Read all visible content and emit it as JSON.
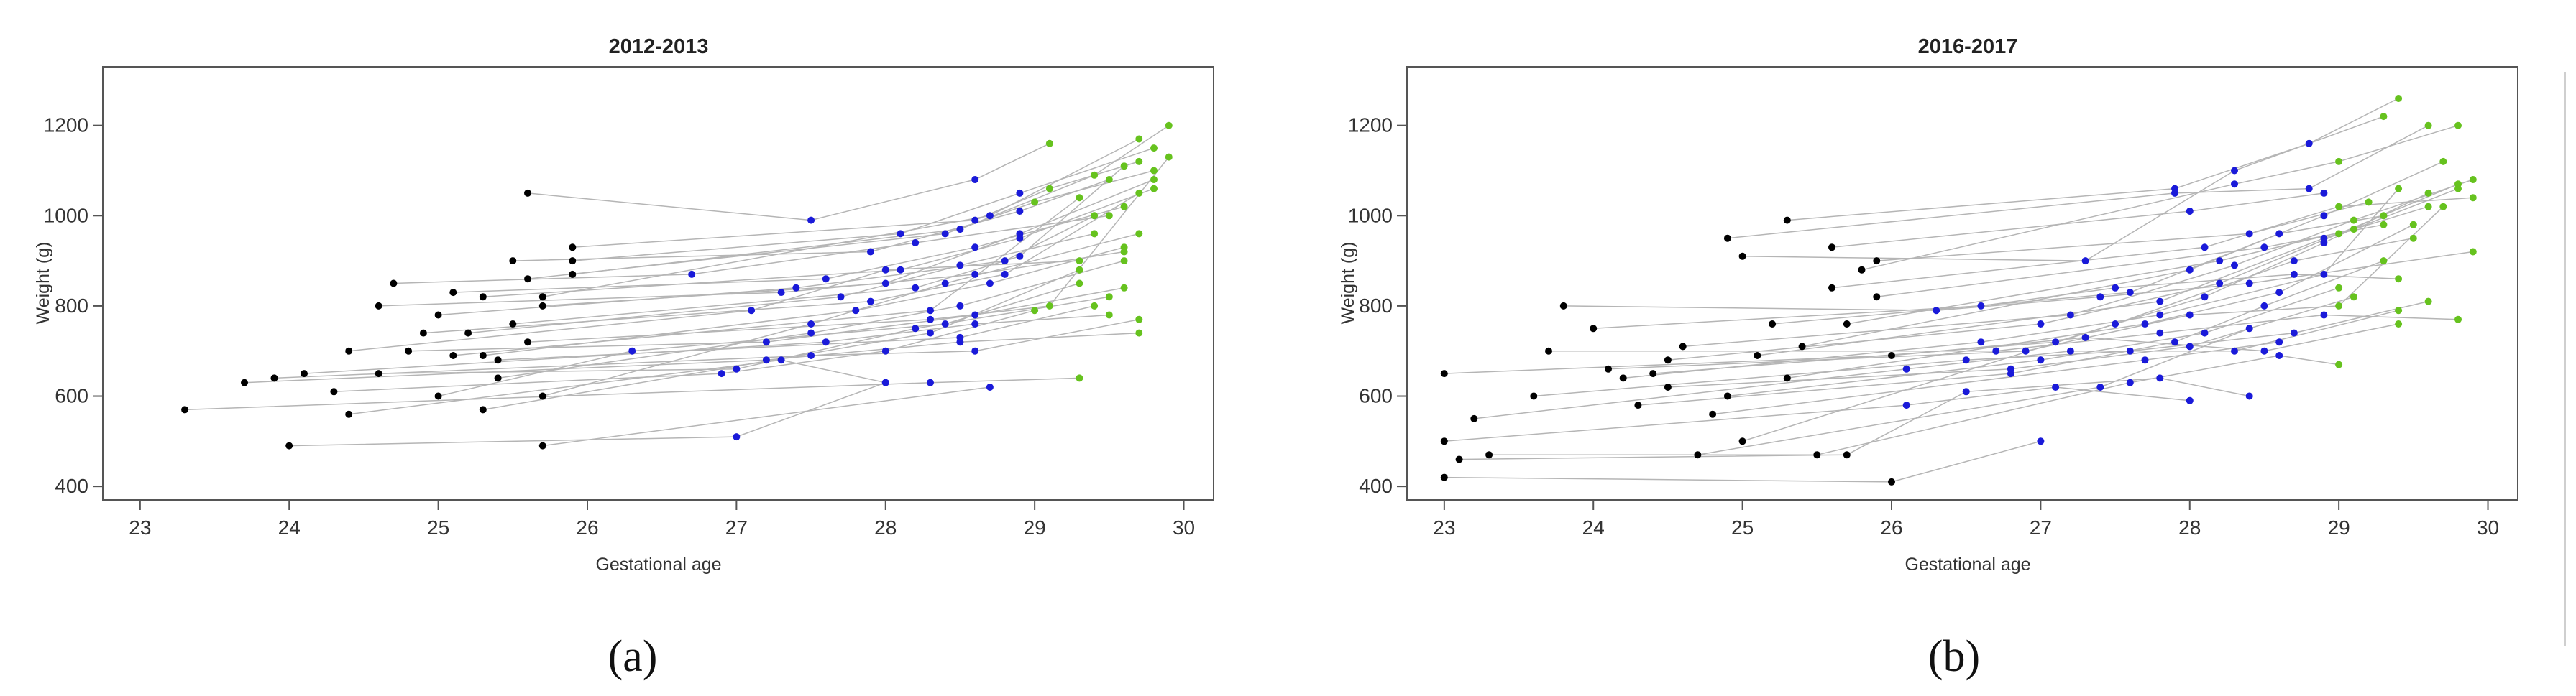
{
  "chart_data": [
    {
      "type": "scatter",
      "panel_label": "(a)",
      "title": "2012-2013",
      "xlabel": "Gestational age",
      "ylabel": "Weight (g)",
      "xlim": [
        22.75,
        30.2
      ],
      "ylim": [
        370,
        1330
      ],
      "xticks": [
        23,
        24,
        25,
        26,
        27,
        28,
        29,
        30
      ],
      "yticks": [
        400,
        600,
        800,
        1000,
        1200
      ],
      "grid": false,
      "legend": "none",
      "colors": {
        "points_early": "#000000",
        "points_mid": "#1a1ad9",
        "points_late": "#66c21e",
        "lines": "#b5b5b5"
      },
      "trajectories": [
        [
          [
            23.3,
            570
          ],
          [
            28.3,
            630
          ],
          [
            29.3,
            640
          ]
        ],
        [
          [
            24.0,
            490
          ],
          [
            27.0,
            510
          ],
          [
            28.0,
            630
          ]
        ],
        [
          [
            25.7,
            490
          ],
          [
            28.7,
            620
          ]
        ],
        [
          [
            24.4,
            560
          ],
          [
            27.3,
            680
          ],
          [
            28.0,
            630
          ]
        ],
        [
          [
            23.7,
            630
          ],
          [
            27.2,
            680
          ],
          [
            28.5,
            720
          ],
          [
            29.7,
            740
          ]
        ],
        [
          [
            23.9,
            640
          ],
          [
            27.5,
            690
          ],
          [
            28.6,
            700
          ],
          [
            29.7,
            770
          ]
        ],
        [
          [
            24.1,
            650
          ],
          [
            27.6,
            720
          ],
          [
            28.6,
            760
          ],
          [
            29.5,
            780
          ]
        ],
        [
          [
            24.3,
            610
          ],
          [
            26.9,
            650
          ],
          [
            28.0,
            700
          ],
          [
            29.0,
            790
          ]
        ],
        [
          [
            24.6,
            650
          ],
          [
            27.0,
            660
          ],
          [
            28.2,
            750
          ],
          [
            29.5,
            820
          ]
        ],
        [
          [
            24.8,
            700
          ],
          [
            27.2,
            720
          ],
          [
            28.6,
            780
          ],
          [
            29.6,
            840
          ]
        ],
        [
          [
            25.0,
            600
          ],
          [
            26.3,
            700
          ],
          [
            28.4,
            760
          ],
          [
            29.3,
            850
          ]
        ],
        [
          [
            25.3,
            570
          ],
          [
            28.3,
            740
          ],
          [
            29.3,
            880
          ]
        ],
        [
          [
            25.4,
            640
          ],
          [
            27.5,
            740
          ],
          [
            28.5,
            800
          ],
          [
            29.6,
            900
          ]
        ],
        [
          [
            25.7,
            600
          ],
          [
            27.5,
            760
          ],
          [
            28.4,
            850
          ],
          [
            29.7,
            960
          ]
        ],
        [
          [
            24.4,
            700
          ],
          [
            27.1,
            790
          ],
          [
            28.0,
            880
          ],
          [
            29.3,
            900
          ]
        ],
        [
          [
            24.6,
            800
          ],
          [
            27.3,
            830
          ],
          [
            28.6,
            870
          ],
          [
            29.6,
            920
          ]
        ],
        [
          [
            24.7,
            850
          ],
          [
            26.7,
            870
          ],
          [
            28.2,
            940
          ],
          [
            29.5,
            1000
          ]
        ],
        [
          [
            25.1,
            830
          ],
          [
            27.6,
            860
          ],
          [
            28.6,
            930
          ],
          [
            29.6,
            1020
          ]
        ],
        [
          [
            25.3,
            820
          ],
          [
            28.1,
            880
          ],
          [
            28.9,
            950
          ],
          [
            29.8,
            1060
          ]
        ],
        [
          [
            25.5,
            900
          ],
          [
            27.9,
            920
          ],
          [
            28.9,
            1010
          ],
          [
            29.5,
            1080
          ]
        ],
        [
          [
            25.6,
            860
          ],
          [
            28.4,
            960
          ],
          [
            29.0,
            1030
          ],
          [
            29.8,
            1100
          ]
        ],
        [
          [
            25.9,
            930
          ],
          [
            28.6,
            990
          ],
          [
            29.1,
            1060
          ],
          [
            29.7,
            1120
          ]
        ],
        [
          [
            25.9,
            900
          ],
          [
            28.1,
            960
          ],
          [
            28.9,
            1050
          ],
          [
            29.8,
            1150
          ]
        ],
        [
          [
            25.6,
            1050
          ],
          [
            27.5,
            990
          ],
          [
            28.6,
            1080
          ],
          [
            29.1,
            1160
          ]
        ],
        [
          [
            25.7,
            820
          ],
          [
            28.7,
            1000
          ],
          [
            29.7,
            1170
          ]
        ],
        [
          [
            25.9,
            870
          ],
          [
            28.5,
            970
          ],
          [
            29.4,
            1090
          ],
          [
            29.9,
            1200
          ]
        ],
        [
          [
            25.2,
            740
          ],
          [
            27.7,
            820
          ],
          [
            28.5,
            890
          ],
          [
            29.4,
            960
          ]
        ],
        [
          [
            25.3,
            690
          ],
          [
            27.8,
            790
          ],
          [
            28.7,
            850
          ],
          [
            29.6,
            930
          ]
        ],
        [
          [
            25.0,
            780
          ],
          [
            27.4,
            840
          ],
          [
            28.8,
            900
          ],
          [
            29.4,
            1000
          ]
        ],
        [
          [
            24.9,
            740
          ],
          [
            27.9,
            810
          ],
          [
            28.8,
            870
          ],
          [
            29.7,
            1050
          ]
        ],
        [
          [
            25.5,
            760
          ],
          [
            28.2,
            840
          ],
          [
            28.9,
            910
          ],
          [
            29.6,
            1110
          ]
        ],
        [
          [
            25.7,
            800
          ],
          [
            28.0,
            850
          ],
          [
            28.9,
            960
          ],
          [
            29.8,
            1080
          ]
        ],
        [
          [
            25.6,
            720
          ],
          [
            28.3,
            770
          ],
          [
            29.1,
            800
          ],
          [
            29.9,
            1130
          ]
        ],
        [
          [
            25.4,
            680
          ],
          [
            28.5,
            730
          ],
          [
            29.4,
            800
          ]
        ],
        [
          [
            25.1,
            690
          ],
          [
            28.3,
            790
          ],
          [
            29.3,
            1040
          ]
        ]
      ]
    },
    {
      "type": "scatter",
      "panel_label": "(b)",
      "title": "2016-2017",
      "xlabel": "Gestational age",
      "ylabel": "Weight (g)",
      "xlim": [
        22.75,
        30.2
      ],
      "ylim": [
        370,
        1330
      ],
      "xticks": [
        23,
        24,
        25,
        26,
        27,
        28,
        29,
        30
      ],
      "yticks": [
        400,
        600,
        800,
        1000,
        1200
      ],
      "grid": false,
      "legend": "none",
      "colors": {
        "points_early": "#000000",
        "points_mid": "#1a1ad9",
        "points_late": "#66c21e",
        "lines": "#b5b5b5"
      },
      "trajectories": [
        [
          [
            23.0,
            420
          ],
          [
            26.0,
            410
          ],
          [
            27.0,
            500
          ]
        ],
        [
          [
            23.0,
            500
          ],
          [
            26.1,
            580
          ],
          [
            27.1,
            620
          ],
          [
            28.0,
            590
          ]
        ],
        [
          [
            23.1,
            460
          ],
          [
            25.7,
            470
          ],
          [
            26.5,
            610
          ],
          [
            27.8,
            640
          ],
          [
            28.4,
            600
          ]
        ],
        [
          [
            23.0,
            650
          ],
          [
            26.0,
            690
          ],
          [
            27.3,
            730
          ],
          [
            28.5,
            700
          ],
          [
            29.4,
            760
          ]
        ],
        [
          [
            23.2,
            550
          ],
          [
            26.1,
            660
          ],
          [
            27.2,
            700
          ],
          [
            28.3,
            700
          ],
          [
            29.4,
            790
          ]
        ],
        [
          [
            23.3,
            470
          ],
          [
            25.5,
            470
          ],
          [
            27.6,
            630
          ],
          [
            28.6,
            690
          ],
          [
            29.0,
            670
          ]
        ],
        [
          [
            23.6,
            600
          ],
          [
            26.5,
            680
          ],
          [
            27.6,
            700
          ],
          [
            28.7,
            740
          ],
          [
            29.6,
            810
          ]
        ],
        [
          [
            23.7,
            700
          ],
          [
            26.7,
            700
          ],
          [
            27.8,
            740
          ],
          [
            28.9,
            780
          ],
          [
            29.8,
            770
          ]
        ],
        [
          [
            23.8,
            800
          ],
          [
            26.3,
            790
          ],
          [
            27.4,
            820
          ],
          [
            28.4,
            850
          ],
          [
            29.9,
            920
          ]
        ],
        [
          [
            24.0,
            750
          ],
          [
            26.6,
            800
          ],
          [
            27.5,
            840
          ],
          [
            28.7,
            870
          ],
          [
            29.4,
            860
          ]
        ],
        [
          [
            24.1,
            660
          ],
          [
            26.9,
            700
          ],
          [
            28.0,
            780
          ],
          [
            29.0,
            800
          ],
          [
            29.7,
            1020
          ]
        ],
        [
          [
            24.2,
            640
          ],
          [
            26.6,
            720
          ],
          [
            27.8,
            780
          ],
          [
            28.9,
            870
          ],
          [
            29.4,
            1060
          ]
        ],
        [
          [
            24.3,
            580
          ],
          [
            26.8,
            650
          ],
          [
            27.9,
            720
          ],
          [
            28.5,
            800
          ],
          [
            29.3,
            900
          ]
        ],
        [
          [
            24.4,
            650
          ],
          [
            27.1,
            720
          ],
          [
            28.1,
            820
          ],
          [
            28.9,
            940
          ],
          [
            29.6,
            1050
          ]
        ],
        [
          [
            24.5,
            680
          ],
          [
            27.0,
            760
          ],
          [
            28.2,
            850
          ],
          [
            29.0,
            960
          ],
          [
            29.8,
            1070
          ]
        ],
        [
          [
            24.6,
            710
          ],
          [
            27.2,
            780
          ],
          [
            28.3,
            890
          ],
          [
            29.1,
            990
          ],
          [
            29.9,
            1080
          ]
        ],
        [
          [
            24.7,
            470
          ],
          [
            27.4,
            620
          ],
          [
            28.4,
            750
          ]
        ],
        [
          [
            24.8,
            560
          ],
          [
            27.7,
            680
          ],
          [
            28.6,
            720
          ]
        ],
        [
          [
            24.9,
            950
          ],
          [
            27.9,
            1050
          ],
          [
            28.8,
            1060
          ],
          [
            29.6,
            1200
          ]
        ],
        [
          [
            25.0,
            910
          ],
          [
            27.3,
            900
          ],
          [
            28.3,
            1100
          ],
          [
            29.3,
            1220
          ]
        ],
        [
          [
            25.0,
            500
          ],
          [
            27.5,
            760
          ],
          [
            28.7,
            900
          ],
          [
            29.5,
            950
          ]
        ],
        [
          [
            25.1,
            690
          ],
          [
            27.8,
            810
          ],
          [
            28.9,
            950
          ],
          [
            29.6,
            1020
          ]
        ],
        [
          [
            25.2,
            760
          ],
          [
            27.6,
            830
          ],
          [
            28.6,
            960
          ],
          [
            29.3,
            1000
          ]
        ],
        [
          [
            25.3,
            990
          ],
          [
            27.9,
            1060
          ],
          [
            28.8,
            1160
          ],
          [
            29.4,
            1260
          ]
        ],
        [
          [
            25.3,
            640
          ],
          [
            27.7,
            760
          ],
          [
            28.6,
            830
          ],
          [
            29.5,
            980
          ]
        ],
        [
          [
            25.4,
            710
          ],
          [
            28.0,
            880
          ],
          [
            28.9,
            1000
          ],
          [
            29.7,
            1120
          ]
        ],
        [
          [
            25.6,
            840
          ],
          [
            28.1,
            930
          ],
          [
            29.0,
            1020
          ],
          [
            29.9,
            1040
          ]
        ],
        [
          [
            25.7,
            760
          ],
          [
            28.2,
            900
          ],
          [
            29.1,
            970
          ],
          [
            29.8,
            1060
          ]
        ],
        [
          [
            25.8,
            880
          ],
          [
            28.3,
            1070
          ],
          [
            29.0,
            1120
          ],
          [
            29.8,
            1200
          ]
        ],
        [
          [
            25.9,
            900
          ],
          [
            28.4,
            960
          ],
          [
            29.2,
            1030
          ]
        ],
        [
          [
            25.9,
            820
          ],
          [
            28.5,
            930
          ],
          [
            29.3,
            980
          ]
        ],
        [
          [
            25.6,
            930
          ],
          [
            28.0,
            1010
          ],
          [
            28.9,
            1050
          ]
        ],
        [
          [
            24.9,
            600
          ],
          [
            27.0,
            680
          ],
          [
            28.1,
            740
          ],
          [
            29.0,
            840
          ]
        ],
        [
          [
            24.5,
            620
          ],
          [
            26.8,
            660
          ],
          [
            28.0,
            710
          ],
          [
            29.1,
            820
          ]
        ]
      ]
    }
  ],
  "panels": [
    {
      "title": "2012-2013",
      "xlabel": "Gestational age",
      "ylabel": "Weight (g)",
      "caption": "(a)"
    },
    {
      "title": "2016-2017",
      "xlabel": "Gestational age",
      "ylabel": "Weight (g)",
      "caption": "(b)"
    }
  ]
}
